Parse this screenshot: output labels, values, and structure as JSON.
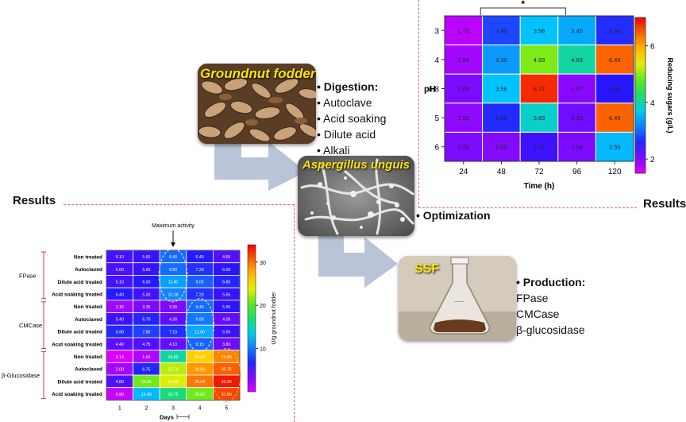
{
  "results_left": "Results",
  "results_right": "Results",
  "groundnut": {
    "title": "Groundnut fodder"
  },
  "digestion": {
    "heading": "Digestion:",
    "items": [
      "Autoclave",
      "Acid soaking",
      "Dilute acid",
      "Alkali"
    ]
  },
  "aspergillus": {
    "title": "Aspergillus unguis"
  },
  "optimization": {
    "label": "Optimization"
  },
  "ssf": {
    "title": "SSF"
  },
  "production": {
    "heading": "Production:",
    "items": [
      "FPase",
      "CMCase",
      "β-glucosidase"
    ]
  },
  "colors": {
    "arrow": "#b9c4d8",
    "dash": "#dd6666",
    "title_yellow": "#ffe600"
  },
  "chart_data": [
    {
      "type": "heatmap",
      "title": "",
      "xlabel": "Time (h)",
      "ylabel": "pH",
      "colorbar_label": "Reducing sugars (g/L)",
      "colorbar_ticks": [
        "2",
        "4",
        "6"
      ],
      "colorbar_range": [
        1.5,
        7.0
      ],
      "significance_marker": "*",
      "x": [
        "24",
        "48",
        "72",
        "96",
        "120"
      ],
      "y": [
        "3",
        "4",
        "4.8",
        "5",
        "6"
      ],
      "values": [
        [
          1.7,
          2.8,
          3.56,
          3.4,
          2.64
        ],
        [
          1.83,
          3.3,
          4.93,
          4.03,
          6.45
        ],
        [
          2.03,
          3.56,
          6.77,
          1.97,
          2.5
        ],
        [
          1.93,
          2.63,
          3.83,
          2.1,
          6.46
        ],
        [
          2.03,
          2.0,
          2.37,
          2.04,
          3.5
        ]
      ]
    },
    {
      "type": "heatmap",
      "title": "",
      "xlabel": "Days",
      "ylabel": "",
      "annotation": "Maximum activity",
      "colorbar_label": "U/g groundnut fodder",
      "colorbar_ticks": [
        "10",
        "20",
        "30"
      ],
      "colorbar_range": [
        0,
        34
      ],
      "x": [
        "1",
        "2",
        "3",
        "4",
        "5"
      ],
      "groups": [
        {
          "name": "FPase",
          "rows": [
            "Non treated",
            "Autoclaved",
            "Dilute acid treated",
            "Acid soaking treated"
          ]
        },
        {
          "name": "CMCase",
          "rows": [
            "Non treated",
            "Autoclaved",
            "Dilute acid treated",
            "Acid soaking treated"
          ]
        },
        {
          "name": "β-Glucosidase",
          "rows": [
            "Non treated",
            "Autoclaved",
            "Dilute acid treated",
            "Acid soaking treated"
          ]
        }
      ],
      "values": [
        [
          5.1,
          5.6,
          9.4,
          6.4,
          4.65
        ],
        [
          5.0,
          5.6,
          9.5,
          7.2,
          6.0
        ],
        [
          5.1,
          6.3,
          11.4,
          9.0,
          6.85
        ],
        [
          6.4,
          5.3,
          10.38,
          7.2,
          5.65
        ],
        [
          2.16,
          3.35,
          3.3,
          9.4,
          5.95
        ],
        [
          5.4,
          6.7,
          4.3,
          9.9,
          4.05
        ],
        [
          6.9,
          7.8,
          7.1,
          11.8,
          5.5
        ],
        [
          4.4,
          4.75,
          4.1,
          9.15,
          3.8
        ],
        [
          0.14,
          1.6,
          15.6,
          26.0,
          29.5
        ],
        [
          2.0,
          6.75,
          22.7,
          28.6,
          30.75
        ],
        [
          4.8,
          20.85,
          23.6,
          30.0,
          33.2
        ],
        [
          0.9,
          12.4,
          16.75,
          20.8,
          31.6
        ]
      ]
    }
  ]
}
